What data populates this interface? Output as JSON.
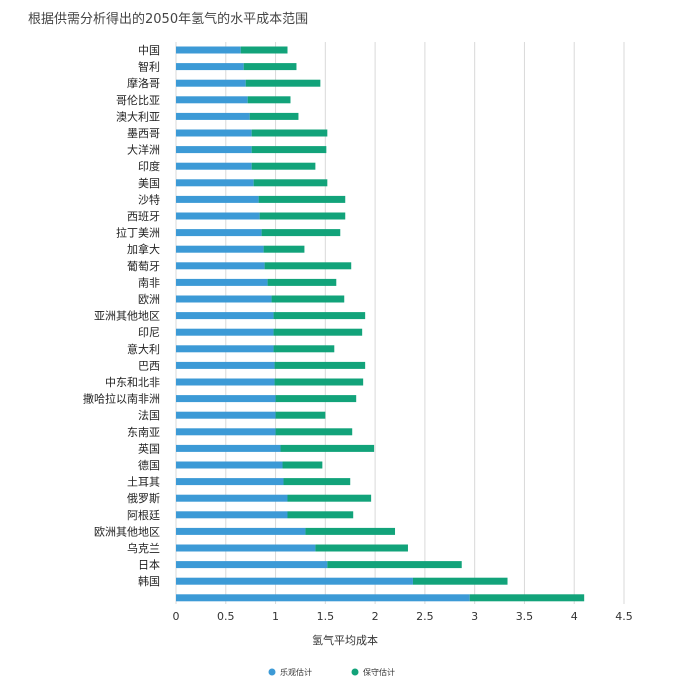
{
  "chart_data": {
    "type": "bar",
    "orientation": "horizontal",
    "stacked": true,
    "title": "根据供需分析得出的2050年氢气的水平成本范围",
    "xlabel": "氢气平均成本",
    "ylabel": "",
    "xlim": [
      0,
      4.5
    ],
    "xticks": [
      "0",
      "0.5",
      "1",
      "1.5",
      "2",
      "2.5",
      "3",
      "3.5",
      "4",
      "4.5"
    ],
    "grid": true,
    "legend_position": "bottom",
    "categories": [
      "中国",
      "智利",
      "摩洛哥",
      "哥伦比亚",
      "澳大利亚",
      "墨西哥",
      "大洋洲",
      "印度",
      "美国",
      "沙特",
      "西班牙",
      "拉丁美洲",
      "加拿大",
      "葡萄牙",
      "南非",
      "欧洲",
      "亚洲其他地区",
      "印尼",
      "意大利",
      "巴西",
      "中东和北非",
      "撒哈拉以南非洲",
      "法国",
      "东南亚",
      "英国",
      "德国",
      "土耳其",
      "俄罗斯",
      "阿根廷",
      "欧洲其他地区",
      "乌克兰",
      "日本",
      "韩国",
      ""
    ],
    "series": [
      {
        "name": "乐观估计",
        "color": "#3c9ad6",
        "values": [
          0.65,
          0.68,
          0.7,
          0.72,
          0.74,
          0.76,
          0.76,
          0.76,
          0.78,
          0.83,
          0.84,
          0.86,
          0.88,
          0.89,
          0.92,
          0.96,
          0.98,
          0.98,
          0.98,
          0.99,
          0.99,
          1.0,
          1.0,
          1.0,
          1.05,
          1.07,
          1.08,
          1.12,
          1.12,
          1.3,
          1.4,
          1.52,
          2.38,
          2.95
        ]
      },
      {
        "name": "保守估计",
        "color": "#12a37a",
        "values": [
          0.47,
          0.53,
          0.75,
          0.43,
          0.49,
          0.76,
          0.75,
          0.64,
          0.74,
          0.87,
          0.86,
          0.79,
          0.41,
          0.87,
          0.69,
          0.73,
          0.92,
          0.89,
          0.61,
          0.91,
          0.89,
          0.81,
          0.5,
          0.77,
          0.94,
          0.4,
          0.67,
          0.84,
          0.66,
          0.9,
          0.93,
          1.35,
          0.95,
          1.15
        ]
      }
    ]
  }
}
